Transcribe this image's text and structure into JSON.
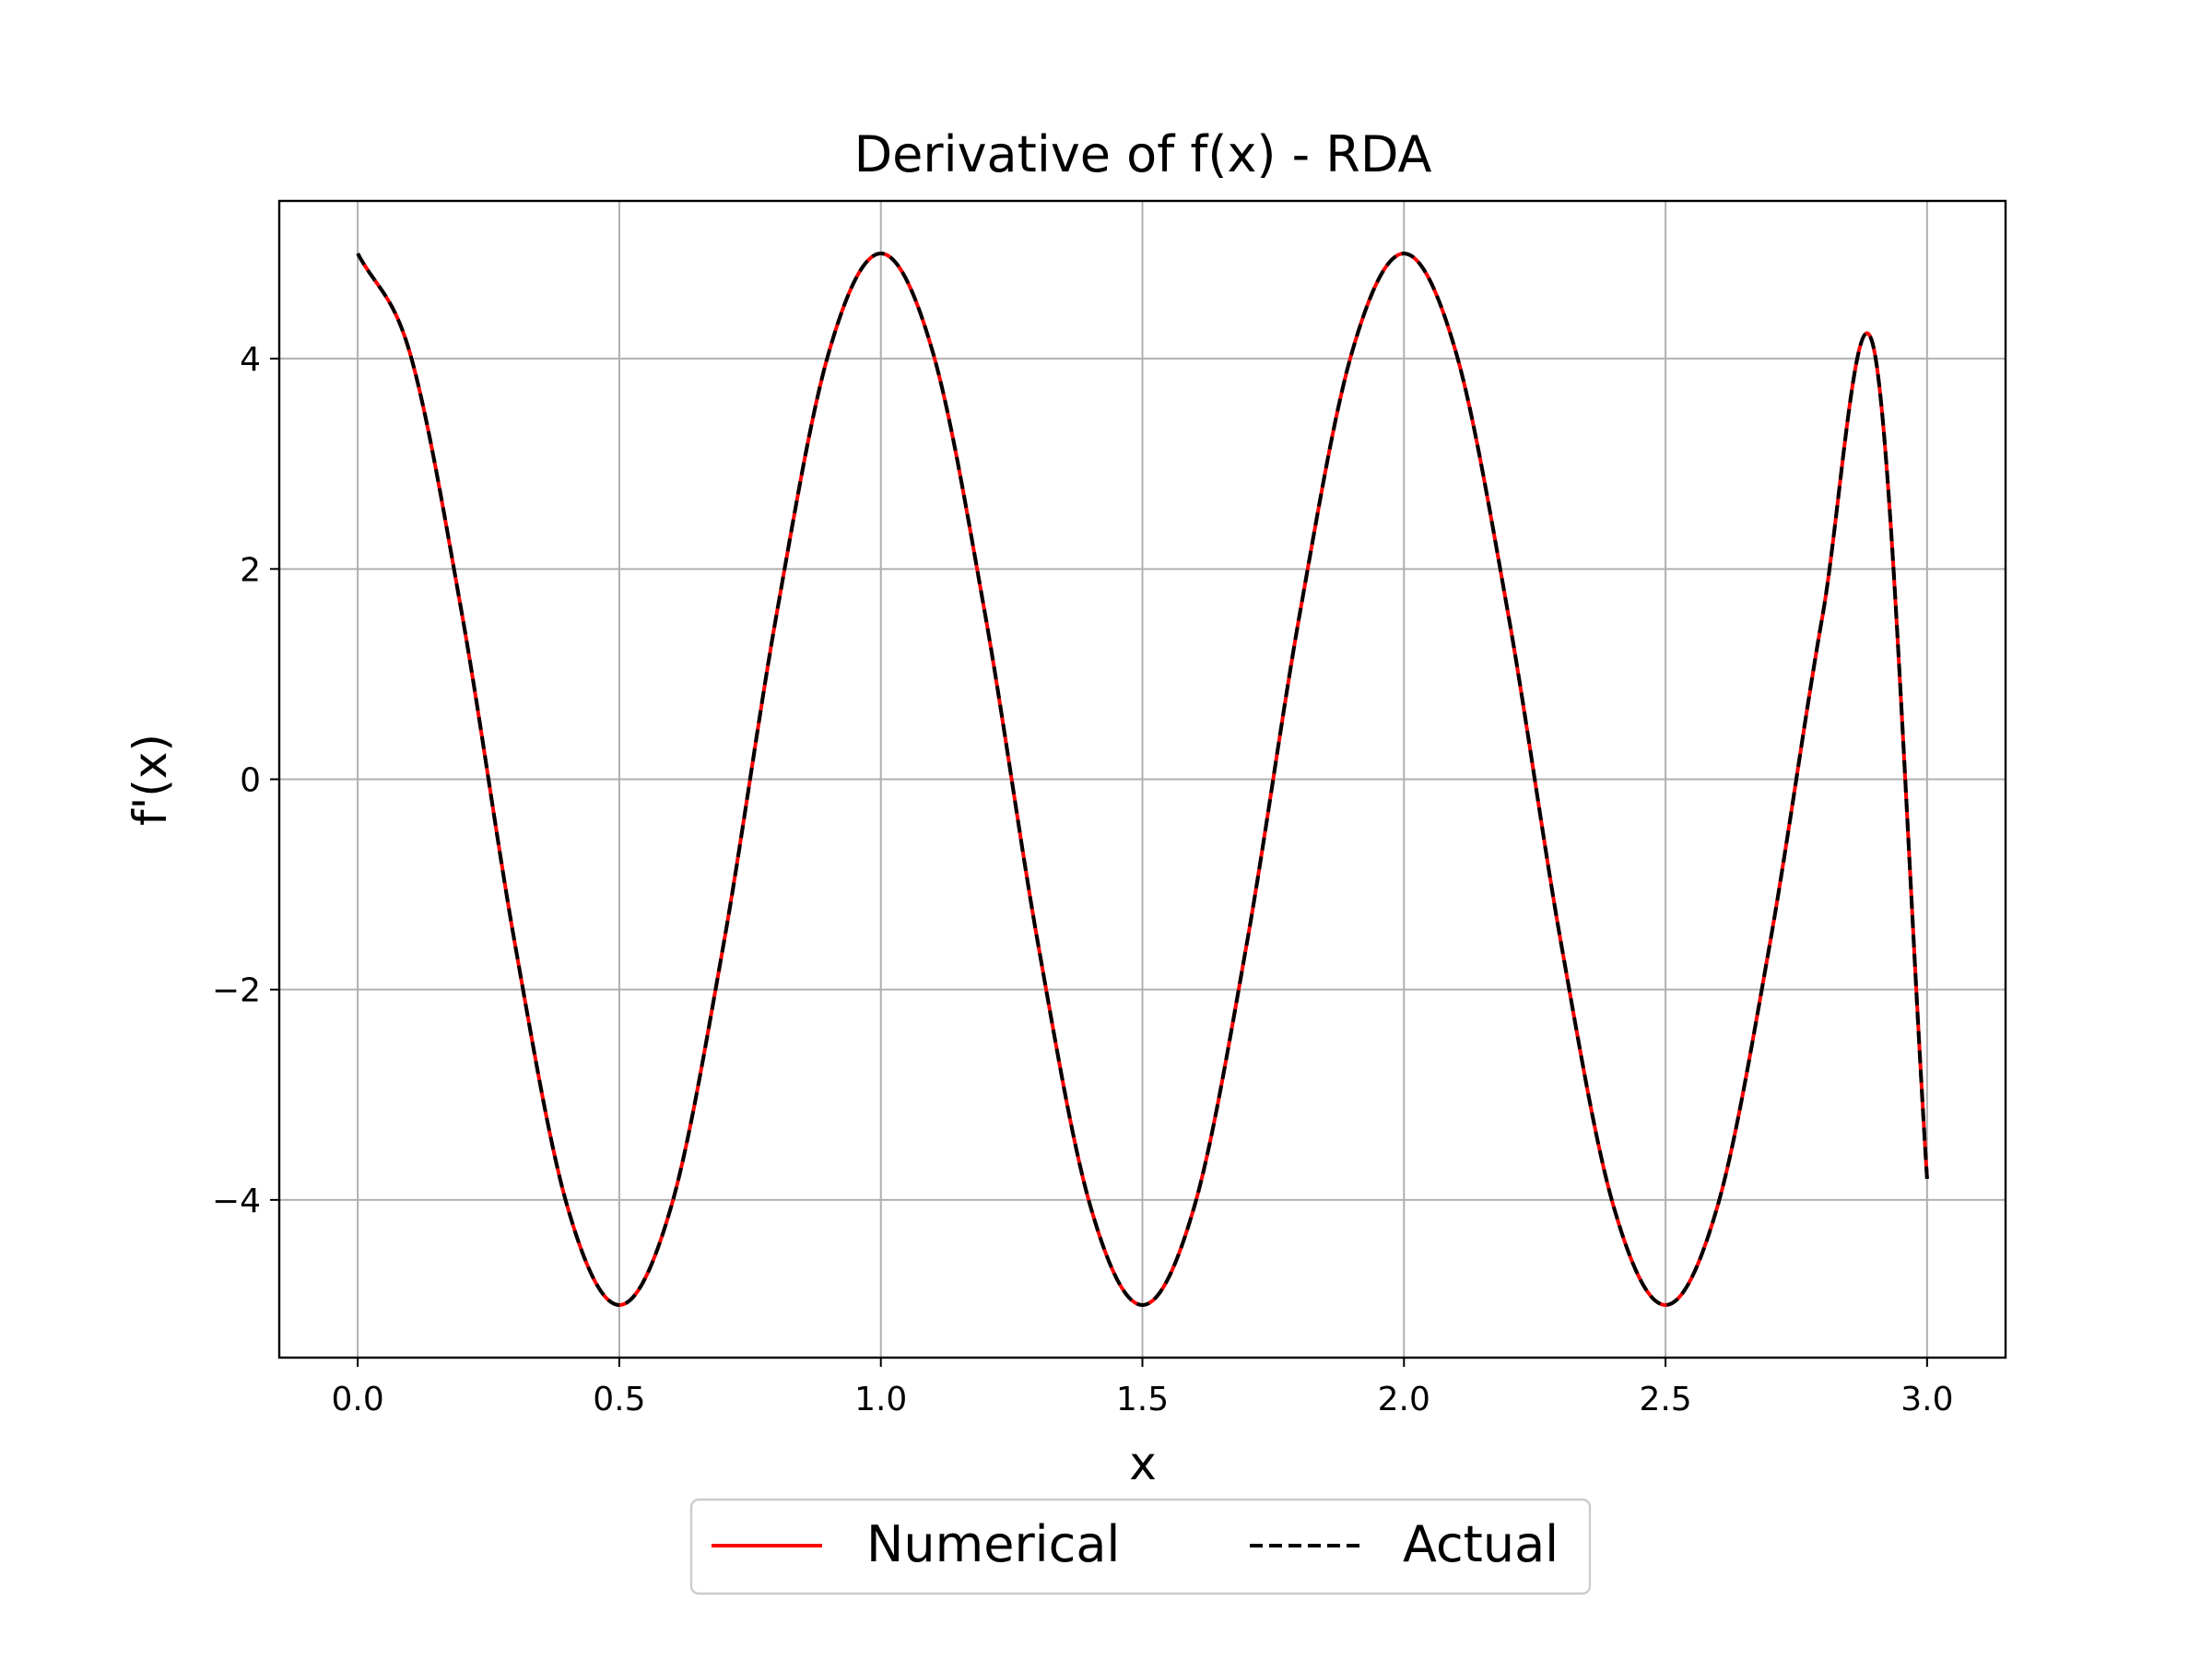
{
  "chart_data": {
    "type": "line",
    "title": "Derivative of f(x) - RDA",
    "xlabel": "x",
    "ylabel": "f'(x)",
    "xlim": [
      -0.15,
      3.15
    ],
    "ylim": [
      -5.5,
      5.5
    ],
    "x_ticks": [
      0.0,
      0.5,
      1.0,
      1.5,
      2.0,
      2.5,
      3.0
    ],
    "x_tick_labels": [
      "0.0",
      "0.5",
      "1.0",
      "1.5",
      "2.0",
      "2.5",
      "3.0"
    ],
    "y_ticks": [
      -4,
      -2,
      0,
      2,
      4
    ],
    "y_tick_labels": [
      "−4",
      "−2",
      "0",
      "2",
      "4"
    ],
    "grid": true,
    "legend_position": "bottom-center",
    "series": [
      {
        "name": "Numerical",
        "color": "#ff0000",
        "style": "solid",
        "x": [
          0.0,
          0.1,
          0.2,
          0.3,
          0.4,
          0.5,
          0.6,
          0.7,
          0.8,
          0.9,
          1.0,
          1.1,
          1.2,
          1.3,
          1.4,
          1.5,
          1.6,
          1.7,
          1.8,
          1.9,
          2.0,
          2.1,
          2.2,
          2.3,
          2.4,
          2.5,
          2.6,
          2.7,
          2.8,
          2.9,
          3.0
        ],
        "y": [
          5.0,
          4.05,
          1.55,
          -1.55,
          -4.05,
          -5.0,
          -4.05,
          -1.55,
          1.55,
          4.05,
          5.0,
          4.05,
          1.55,
          -1.55,
          -4.05,
          -5.0,
          -4.05,
          -1.55,
          1.55,
          4.05,
          5.0,
          4.05,
          1.55,
          -1.55,
          -4.05,
          -5.0,
          -4.05,
          -1.55,
          1.55,
          4.05,
          -3.8
        ]
      },
      {
        "name": "Actual",
        "color": "#000000",
        "style": "dashed",
        "x": [
          0.0,
          0.1,
          0.2,
          0.3,
          0.4,
          0.5,
          0.6,
          0.7,
          0.8,
          0.9,
          1.0,
          1.1,
          1.2,
          1.3,
          1.4,
          1.5,
          1.6,
          1.7,
          1.8,
          1.9,
          2.0,
          2.1,
          2.2,
          2.3,
          2.4,
          2.5,
          2.6,
          2.7,
          2.8,
          2.9,
          3.0
        ],
        "y": [
          5.0,
          4.05,
          1.55,
          -1.55,
          -4.05,
          -5.0,
          -4.05,
          -1.55,
          1.55,
          4.05,
          5.0,
          4.05,
          1.55,
          -1.55,
          -4.05,
          -5.0,
          -4.05,
          -1.55,
          1.55,
          4.05,
          5.0,
          4.05,
          1.55,
          -1.55,
          -4.05,
          -5.0,
          -4.05,
          -1.55,
          1.55,
          4.05,
          -3.8
        ]
      }
    ]
  }
}
